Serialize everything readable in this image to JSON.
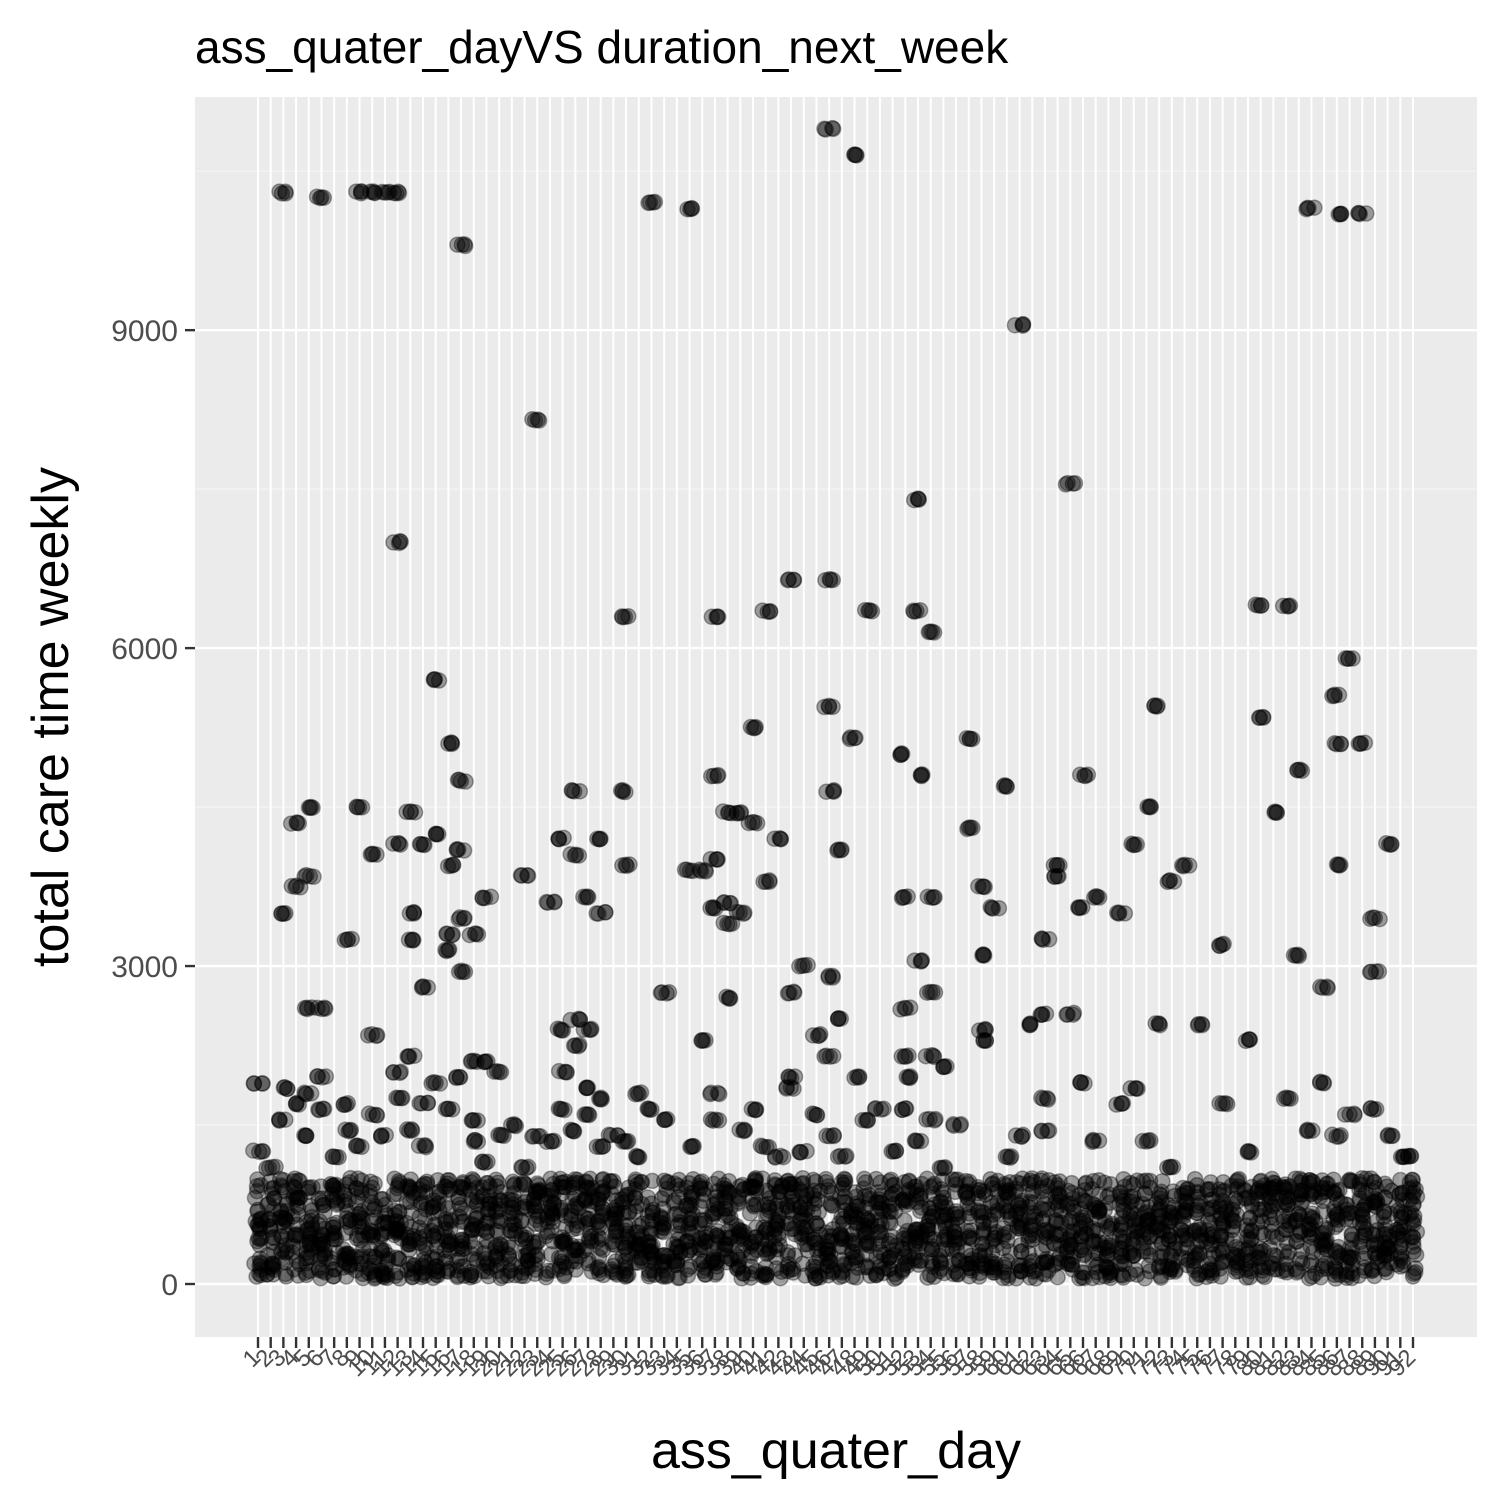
{
  "colors": {
    "panel_background": "#ebebeb",
    "major_grid": "#ffffff",
    "minor_grid": "#f5f5f5",
    "point": "#000000",
    "tick_mark": "#333333",
    "tick_label": "#4d4d4d",
    "text": "#000000"
  },
  "chart_data": {
    "type": "scatter",
    "title": "ass_quater_dayVS duration_next_week",
    "xlabel": "ass_quater_day",
    "ylabel": "total care time weekly",
    "x_axis": {
      "kind": "categorical",
      "first_label": "1",
      "last_label": "92",
      "category_count": 92,
      "tick_labels_overlapping": true
    },
    "y_axis": {
      "ylim": [
        -500,
        11200
      ],
      "ticks": [
        0,
        3000,
        6000,
        9000
      ]
    },
    "grid": true,
    "point_alpha": 0.35,
    "dense_band": {
      "x_range": [
        1,
        92
      ],
      "y_range": [
        0,
        1000
      ]
    },
    "points": [
      {
        "x": 1,
        "y": 1900
      },
      {
        "x": 1,
        "y": 1250
      },
      {
        "x": 2,
        "y": 1100
      },
      {
        "x": 3,
        "y": 10300
      },
      {
        "x": 3,
        "y": 3500
      },
      {
        "x": 3,
        "y": 1850
      },
      {
        "x": 3,
        "y": 1550
      },
      {
        "x": 4,
        "y": 4350
      },
      {
        "x": 4,
        "y": 3750
      },
      {
        "x": 4,
        "y": 1700
      },
      {
        "x": 5,
        "y": 4500
      },
      {
        "x": 5,
        "y": 3850
      },
      {
        "x": 5,
        "y": 2600
      },
      {
        "x": 5,
        "y": 1800
      },
      {
        "x": 5,
        "y": 1400
      },
      {
        "x": 6,
        "y": 10250
      },
      {
        "x": 6,
        "y": 2600
      },
      {
        "x": 6,
        "y": 1950
      },
      {
        "x": 6,
        "y": 1650
      },
      {
        "x": 7,
        "y": 1200
      },
      {
        "x": 8,
        "y": 3250
      },
      {
        "x": 8,
        "y": 1700
      },
      {
        "x": 8,
        "y": 1450
      },
      {
        "x": 9,
        "y": 10300
      },
      {
        "x": 9,
        "y": 4500
      },
      {
        "x": 9,
        "y": 1300
      },
      {
        "x": 10,
        "y": 10300
      },
      {
        "x": 10,
        "y": 4050
      },
      {
        "x": 10,
        "y": 2350
      },
      {
        "x": 10,
        "y": 1600
      },
      {
        "x": 11,
        "y": 10300
      },
      {
        "x": 11,
        "y": 1400
      },
      {
        "x": 12,
        "y": 10300
      },
      {
        "x": 12,
        "y": 7000
      },
      {
        "x": 12,
        "y": 4150
      },
      {
        "x": 12,
        "y": 2000
      },
      {
        "x": 12,
        "y": 1750
      },
      {
        "x": 13,
        "y": 4450
      },
      {
        "x": 13,
        "y": 3500
      },
      {
        "x": 13,
        "y": 3250
      },
      {
        "x": 13,
        "y": 2150
      },
      {
        "x": 13,
        "y": 1450
      },
      {
        "x": 14,
        "y": 4150
      },
      {
        "x": 14,
        "y": 2800
      },
      {
        "x": 14,
        "y": 1700
      },
      {
        "x": 14,
        "y": 1300
      },
      {
        "x": 15,
        "y": 5700
      },
      {
        "x": 15,
        "y": 4250
      },
      {
        "x": 15,
        "y": 1900
      },
      {
        "x": 16,
        "y": 5100
      },
      {
        "x": 16,
        "y": 3950
      },
      {
        "x": 16,
        "y": 3300
      },
      {
        "x": 16,
        "y": 3150
      },
      {
        "x": 16,
        "y": 1650
      },
      {
        "x": 17,
        "y": 9800
      },
      {
        "x": 17,
        "y": 4750
      },
      {
        "x": 17,
        "y": 4100
      },
      {
        "x": 17,
        "y": 3450
      },
      {
        "x": 17,
        "y": 2950
      },
      {
        "x": 17,
        "y": 1950
      },
      {
        "x": 18,
        "y": 3300
      },
      {
        "x": 18,
        "y": 2100
      },
      {
        "x": 18,
        "y": 1550
      },
      {
        "x": 18,
        "y": 1350
      },
      {
        "x": 19,
        "y": 3650
      },
      {
        "x": 19,
        "y": 2100
      },
      {
        "x": 19,
        "y": 1150
      },
      {
        "x": 20,
        "y": 2000
      },
      {
        "x": 20,
        "y": 1400
      },
      {
        "x": 21,
        "y": 1500
      },
      {
        "x": 22,
        "y": 3850
      },
      {
        "x": 22,
        "y": 1100
      },
      {
        "x": 23,
        "y": 8150
      },
      {
        "x": 23,
        "y": 1400
      },
      {
        "x": 24,
        "y": 3600
      },
      {
        "x": 24,
        "y": 1350
      },
      {
        "x": 25,
        "y": 4200
      },
      {
        "x": 25,
        "y": 2400
      },
      {
        "x": 25,
        "y": 2000
      },
      {
        "x": 25,
        "y": 1650
      },
      {
        "x": 26,
        "y": 4650
      },
      {
        "x": 26,
        "y": 4050
      },
      {
        "x": 26,
        "y": 2500
      },
      {
        "x": 26,
        "y": 2250
      },
      {
        "x": 26,
        "y": 1450
      },
      {
        "x": 27,
        "y": 3650
      },
      {
        "x": 27,
        "y": 2400
      },
      {
        "x": 27,
        "y": 1850
      },
      {
        "x": 27,
        "y": 1600
      },
      {
        "x": 28,
        "y": 4200
      },
      {
        "x": 28,
        "y": 3500
      },
      {
        "x": 28,
        "y": 1750
      },
      {
        "x": 28,
        "y": 1300
      },
      {
        "x": 29,
        "y": 1400
      },
      {
        "x": 30,
        "y": 6300
      },
      {
        "x": 30,
        "y": 4650
      },
      {
        "x": 30,
        "y": 3950
      },
      {
        "x": 30,
        "y": 1350
      },
      {
        "x": 31,
        "y": 1800
      },
      {
        "x": 31,
        "y": 1200
      },
      {
        "x": 32,
        "y": 10200
      },
      {
        "x": 32,
        "y": 1650
      },
      {
        "x": 33,
        "y": 2750
      },
      {
        "x": 33,
        "y": 1550
      },
      {
        "x": 35,
        "y": 10150
      },
      {
        "x": 35,
        "y": 3900
      },
      {
        "x": 35,
        "y": 1300
      },
      {
        "x": 36,
        "y": 3900
      },
      {
        "x": 36,
        "y": 2300
      },
      {
        "x": 37,
        "y": 6300
      },
      {
        "x": 37,
        "y": 4800
      },
      {
        "x": 37,
        "y": 4000
      },
      {
        "x": 37,
        "y": 3550
      },
      {
        "x": 37,
        "y": 1800
      },
      {
        "x": 37,
        "y": 1550
      },
      {
        "x": 38,
        "y": 4450
      },
      {
        "x": 38,
        "y": 3600
      },
      {
        "x": 38,
        "y": 3400
      },
      {
        "x": 38,
        "y": 2700
      },
      {
        "x": 39,
        "y": 4450
      },
      {
        "x": 39,
        "y": 3500
      },
      {
        "x": 39,
        "y": 1450
      },
      {
        "x": 40,
        "y": 5250
      },
      {
        "x": 40,
        "y": 4350
      },
      {
        "x": 40,
        "y": 1650
      },
      {
        "x": 41,
        "y": 6350
      },
      {
        "x": 41,
        "y": 3800
      },
      {
        "x": 41,
        "y": 1300
      },
      {
        "x": 42,
        "y": 4200
      },
      {
        "x": 42,
        "y": 1200
      },
      {
        "x": 43,
        "y": 6650
      },
      {
        "x": 43,
        "y": 2750
      },
      {
        "x": 43,
        "y": 1950
      },
      {
        "x": 43,
        "y": 1850
      },
      {
        "x": 44,
        "y": 3000
      },
      {
        "x": 44,
        "y": 1250
      },
      {
        "x": 45,
        "y": 2350
      },
      {
        "x": 45,
        "y": 1600
      },
      {
        "x": 46,
        "y": 10900
      },
      {
        "x": 46,
        "y": 6650
      },
      {
        "x": 46,
        "y": 5450
      },
      {
        "x": 46,
        "y": 4650
      },
      {
        "x": 46,
        "y": 2900
      },
      {
        "x": 46,
        "y": 2150
      },
      {
        "x": 46,
        "y": 1400
      },
      {
        "x": 47,
        "y": 4100
      },
      {
        "x": 47,
        "y": 2500
      },
      {
        "x": 47,
        "y": 1200
      },
      {
        "x": 48,
        "y": 10650
      },
      {
        "x": 48,
        "y": 5150
      },
      {
        "x": 48,
        "y": 1950
      },
      {
        "x": 49,
        "y": 6350
      },
      {
        "x": 49,
        "y": 1550
      },
      {
        "x": 50,
        "y": 1650
      },
      {
        "x": 51,
        "y": 1250
      },
      {
        "x": 52,
        "y": 5000
      },
      {
        "x": 52,
        "y": 3650
      },
      {
        "x": 52,
        "y": 2600
      },
      {
        "x": 52,
        "y": 2150
      },
      {
        "x": 52,
        "y": 1950
      },
      {
        "x": 52,
        "y": 1650
      },
      {
        "x": 53,
        "y": 7400
      },
      {
        "x": 53,
        "y": 6350
      },
      {
        "x": 53,
        "y": 4800
      },
      {
        "x": 53,
        "y": 3050
      },
      {
        "x": 53,
        "y": 1350
      },
      {
        "x": 54,
        "y": 6150
      },
      {
        "x": 54,
        "y": 3650
      },
      {
        "x": 54,
        "y": 2750
      },
      {
        "x": 54,
        "y": 2150
      },
      {
        "x": 54,
        "y": 1550
      },
      {
        "x": 55,
        "y": 2050
      },
      {
        "x": 55,
        "y": 1100
      },
      {
        "x": 56,
        "y": 1500
      },
      {
        "x": 57,
        "y": 5150
      },
      {
        "x": 57,
        "y": 4300
      },
      {
        "x": 58,
        "y": 3750
      },
      {
        "x": 58,
        "y": 3100
      },
      {
        "x": 58,
        "y": 2400
      },
      {
        "x": 58,
        "y": 2300
      },
      {
        "x": 59,
        "y": 3550
      },
      {
        "x": 60,
        "y": 4700
      },
      {
        "x": 60,
        "y": 1200
      },
      {
        "x": 61,
        "y": 9050
      },
      {
        "x": 61,
        "y": 1400
      },
      {
        "x": 62,
        "y": 2450
      },
      {
        "x": 63,
        "y": 3250
      },
      {
        "x": 63,
        "y": 2550
      },
      {
        "x": 63,
        "y": 1750
      },
      {
        "x": 63,
        "y": 1450
      },
      {
        "x": 64,
        "y": 3950
      },
      {
        "x": 64,
        "y": 3850
      },
      {
        "x": 65,
        "y": 7550
      },
      {
        "x": 65,
        "y": 2550
      },
      {
        "x": 66,
        "y": 4800
      },
      {
        "x": 66,
        "y": 3550
      },
      {
        "x": 66,
        "y": 1900
      },
      {
        "x": 67,
        "y": 3650
      },
      {
        "x": 67,
        "y": 1350
      },
      {
        "x": 69,
        "y": 3500
      },
      {
        "x": 69,
        "y": 1700
      },
      {
        "x": 70,
        "y": 4150
      },
      {
        "x": 70,
        "y": 1850
      },
      {
        "x": 71,
        "y": 4500
      },
      {
        "x": 71,
        "y": 1350
      },
      {
        "x": 72,
        "y": 5450
      },
      {
        "x": 72,
        "y": 2450
      },
      {
        "x": 73,
        "y": 3800
      },
      {
        "x": 73,
        "y": 1100
      },
      {
        "x": 74,
        "y": 3950
      },
      {
        "x": 75,
        "y": 2450
      },
      {
        "x": 77,
        "y": 3200
      },
      {
        "x": 77,
        "y": 1700
      },
      {
        "x": 79,
        "y": 2300
      },
      {
        "x": 79,
        "y": 1250
      },
      {
        "x": 80,
        "y": 6400
      },
      {
        "x": 80,
        "y": 5350
      },
      {
        "x": 81,
        "y": 4450
      },
      {
        "x": 82,
        "y": 6400
      },
      {
        "x": 82,
        "y": 1750
      },
      {
        "x": 83,
        "y": 4850
      },
      {
        "x": 83,
        "y": 3100
      },
      {
        "x": 84,
        "y": 10150
      },
      {
        "x": 84,
        "y": 1450
      },
      {
        "x": 85,
        "y": 2800
      },
      {
        "x": 85,
        "y": 1900
      },
      {
        "x": 86,
        "y": 10100
      },
      {
        "x": 86,
        "y": 5550
      },
      {
        "x": 86,
        "y": 5100
      },
      {
        "x": 86,
        "y": 3950
      },
      {
        "x": 86,
        "y": 1400
      },
      {
        "x": 87,
        "y": 5900
      },
      {
        "x": 87,
        "y": 1600
      },
      {
        "x": 88,
        "y": 10100
      },
      {
        "x": 88,
        "y": 5100
      },
      {
        "x": 89,
        "y": 3450
      },
      {
        "x": 89,
        "y": 2950
      },
      {
        "x": 89,
        "y": 1650
      },
      {
        "x": 90,
        "y": 4150
      },
      {
        "x": 90,
        "y": 1400
      },
      {
        "x": 91,
        "y": 1200
      },
      {
        "x": 92,
        "y": 1200
      }
    ]
  }
}
